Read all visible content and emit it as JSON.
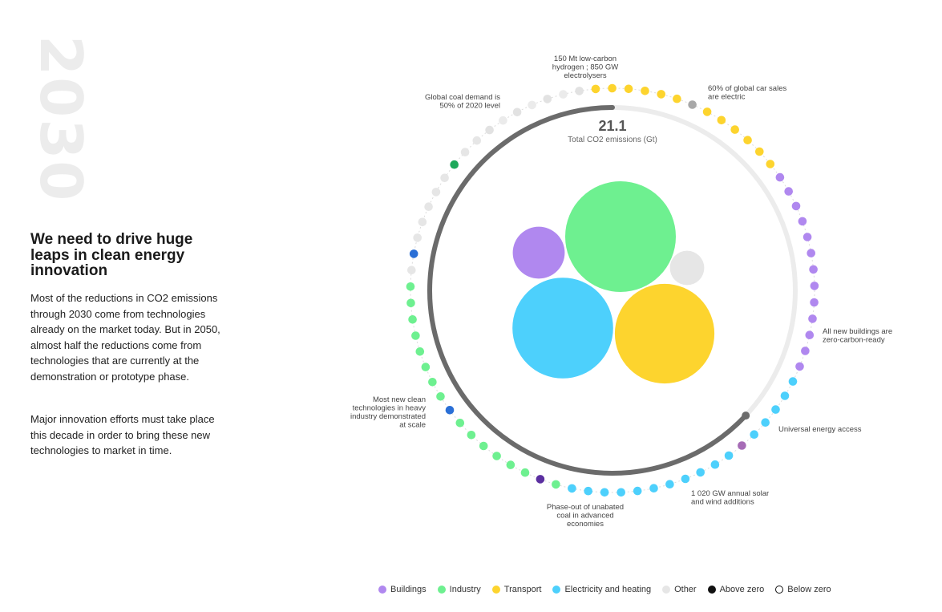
{
  "year": "2030",
  "headline": "We need to drive huge leaps in clean energy innovation",
  "paragraphs": [
    "Most of the reductions in CO2 emissions through 2030 come from technologies already on the market today. But in 2050, almost half the reductions come from technologies that are currently at the demonstration or prototype phase.",
    "Major innovation efforts must take place this decade in order to bring these new technologies to market in time."
  ],
  "colors": {
    "buildings": "#b088ef",
    "industry": "#6ef090",
    "transport": "#fdd42e",
    "electricity": "#4dd0fc",
    "other": "#e6e6e6",
    "arc_dark": "#6b6b6b",
    "arc_light": "#ececec"
  },
  "legend": [
    {
      "key": "buildings",
      "label": "Buildings",
      "color": "#b088ef",
      "style": "fill"
    },
    {
      "key": "industry",
      "label": "Industry",
      "color": "#6ef090",
      "style": "fill"
    },
    {
      "key": "transport",
      "label": "Transport",
      "color": "#fdd42e",
      "style": "fill"
    },
    {
      "key": "electricity",
      "label": "Electricity and heating",
      "color": "#4dd0fc",
      "style": "fill"
    },
    {
      "key": "other",
      "label": "Other",
      "color": "#e6e6e6",
      "style": "fill"
    },
    {
      "key": "above",
      "label": "Above zero",
      "color": "#111111",
      "style": "fill"
    },
    {
      "key": "below",
      "label": "Below zero",
      "color": "#111111",
      "style": "outline"
    }
  ],
  "chart_data": {
    "type": "bubble-ring",
    "total_value": "21.1",
    "total_label": "Total CO2 emissions (Gt)",
    "emissions_arc_fraction": 0.63,
    "bubbles": [
      {
        "sector": "industry",
        "radius_rel": 1.0
      },
      {
        "sector": "electricity",
        "radius_rel": 0.91
      },
      {
        "sector": "transport",
        "radius_rel": 0.9
      },
      {
        "sector": "buildings",
        "radius_rel": 0.47
      },
      {
        "sector": "other",
        "radius_rel": 0.31
      }
    ],
    "milestone_ring": [
      {
        "sector": "other",
        "count": 7
      },
      {
        "sector": "transport",
        "count": 13
      },
      {
        "sector": "buildings",
        "count": 13
      },
      {
        "sector": "electricity",
        "count": 17
      },
      {
        "sector": "industry",
        "count": 17
      },
      {
        "sector": "other",
        "count": 10
      }
    ],
    "highlighted_milestones": [
      {
        "sector": "other",
        "text": [
          "150 Mt low-carbon",
          "hydrogen ; 850 GW",
          "electrolysers"
        ]
      },
      {
        "sector": "transport",
        "text": [
          "60% of global car sales",
          "are electric"
        ]
      },
      {
        "sector": "buildings",
        "text": [
          "All new buildings are",
          "zero-carbon-ready"
        ]
      },
      {
        "sector": "buildings",
        "text": [
          "Universal energy access"
        ]
      },
      {
        "sector": "electricity",
        "text": [
          "1 020 GW annual solar",
          "and wind additions"
        ]
      },
      {
        "sector": "electricity",
        "text": [
          "Phase-out of unabated",
          "coal in advanced",
          "economies"
        ]
      },
      {
        "sector": "industry",
        "text": [
          "Most new clean",
          "technologies in heavy",
          "industry demonstrated",
          "at scale"
        ]
      },
      {
        "sector": "other",
        "text": [
          "Global coal demand is",
          "50% of 2020 level"
        ]
      }
    ]
  }
}
